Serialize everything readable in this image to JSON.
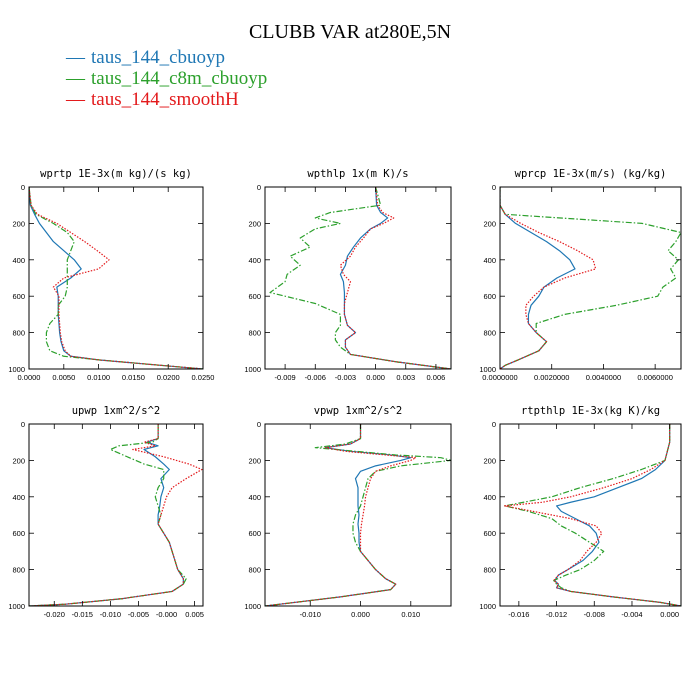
{
  "title": "CLUBB VAR at280E,5N",
  "legend": [
    {
      "label": "taus_144_cbuoyp",
      "color": "#1f77b4",
      "style": "solid"
    },
    {
      "label": "taus_144_c8m_cbuoyp",
      "color": "#2ca02c",
      "style": "dashdot"
    },
    {
      "label": "taus_144_smoothH",
      "color": "#e31a1c",
      "style": "dotted"
    }
  ],
  "chart_data": [
    {
      "type": "line",
      "title": "wprtp  1E-3x(m kg)/(s kg)",
      "xlim": [
        0.0,
        0.025
      ],
      "ylim": [
        1000,
        0
      ],
      "xticks": [
        0.0,
        0.005,
        0.01,
        0.015,
        0.02,
        0.025
      ],
      "xtick_labels": [
        "0.0000",
        "0.0050",
        "0.0100",
        "0.0150",
        "0.0200",
        "0.0250"
      ],
      "yticks": [
        0,
        200,
        400,
        600,
        800,
        1000
      ],
      "ytick_labels": [
        "0",
        "200",
        "400",
        "600",
        "800",
        "1000"
      ],
      "y": [
        0,
        100,
        150,
        200,
        250,
        300,
        350,
        400,
        450,
        500,
        550,
        600,
        650,
        700,
        750,
        800,
        850,
        900,
        930,
        950,
        970,
        990,
        1000
      ],
      "series": [
        {
          "name": "taus_144_cbuoyp",
          "values": [
            0.0,
            0.0002,
            0.0008,
            0.0015,
            0.0025,
            0.0035,
            0.005,
            0.0065,
            0.0075,
            0.006,
            0.004,
            0.0042,
            0.0042,
            0.0042,
            0.0043,
            0.0044,
            0.0046,
            0.005,
            0.006,
            0.01,
            0.016,
            0.022,
            0.025
          ]
        },
        {
          "name": "taus_144_c8m_cbuoyp",
          "values": [
            0.0,
            0.0003,
            0.001,
            0.0035,
            0.0055,
            0.0065,
            0.006,
            0.0055,
            0.0055,
            0.0055,
            0.0055,
            0.0052,
            0.0042,
            0.0042,
            0.003,
            0.0025,
            0.0025,
            0.003,
            0.005,
            0.01,
            0.016,
            0.022,
            0.025
          ]
        },
        {
          "name": "taus_144_smoothH",
          "values": [
            0.0,
            0.0003,
            0.0012,
            0.004,
            0.006,
            0.008,
            0.0098,
            0.0115,
            0.01,
            0.005,
            0.0035,
            0.0043,
            0.0043,
            0.0043,
            0.0044,
            0.0045,
            0.0047,
            0.0052,
            0.006,
            0.01,
            0.016,
            0.022,
            0.025
          ]
        }
      ]
    },
    {
      "type": "line",
      "title": "wpthlp  1x(m K)/s",
      "xlim": [
        -0.011,
        0.0075
      ],
      "ylim": [
        1000,
        0
      ],
      "xticks": [
        -0.009,
        -0.006,
        -0.003,
        0.0,
        0.003,
        0.006
      ],
      "xtick_labels": [
        "-0.009",
        "-0.006",
        "-0.003",
        "0.000",
        "0.003",
        "0.006"
      ],
      "yticks": [
        0,
        200,
        400,
        600,
        800,
        1000
      ],
      "ytick_labels": [
        "0",
        "200",
        "400",
        "600",
        "800",
        "1000"
      ],
      "y": [
        0,
        100,
        140,
        170,
        200,
        230,
        280,
        330,
        380,
        430,
        480,
        520,
        580,
        640,
        700,
        760,
        800,
        840,
        880,
        920,
        960,
        1000
      ],
      "series": [
        {
          "name": "taus_144_cbuoyp",
          "values": [
            0.0,
            0.0001,
            0.0005,
            0.0012,
            0.0005,
            -0.0005,
            -0.0015,
            -0.0022,
            -0.0028,
            -0.003,
            -0.0035,
            -0.0032,
            -0.0031,
            -0.0031,
            -0.0031,
            -0.0028,
            -0.002,
            -0.003,
            -0.003,
            -0.0025,
            0.002,
            0.0075
          ]
        },
        {
          "name": "taus_144_c8m_cbuoyp",
          "values": [
            0.0,
            0.0005,
            -0.0045,
            -0.006,
            -0.0035,
            -0.006,
            -0.0075,
            -0.0065,
            -0.0085,
            -0.0075,
            -0.0088,
            -0.009,
            -0.0105,
            -0.006,
            -0.0035,
            -0.0035,
            -0.004,
            -0.004,
            -0.0035,
            -0.0025,
            0.002,
            0.0075
          ]
        },
        {
          "name": "taus_144_smoothH",
          "values": [
            0.0,
            0.0002,
            0.0007,
            0.0018,
            0.0008,
            -0.0005,
            -0.0012,
            -0.002,
            -0.0025,
            -0.0035,
            -0.0032,
            -0.0025,
            -0.0028,
            -0.0031,
            -0.0031,
            -0.0028,
            -0.002,
            -0.003,
            -0.003,
            -0.0025,
            0.002,
            0.0075
          ]
        }
      ]
    },
    {
      "type": "line",
      "title": "wprcp  1E-3x(m/s) (kg/kg)",
      "xlim": [
        0.0,
        0.007
      ],
      "ylim": [
        1000,
        0
      ],
      "xticks": [
        0.0,
        0.002,
        0.004,
        0.006
      ],
      "xtick_labels": [
        "0.0000000",
        "0.0020000",
        "0.0040000",
        "0.0060000"
      ],
      "yticks": [
        0,
        200,
        400,
        600,
        800,
        1000
      ],
      "ytick_labels": [
        "0",
        "200",
        "400",
        "600",
        "800",
        "1000"
      ],
      "y": [
        0,
        100,
        150,
        200,
        250,
        300,
        350,
        400,
        450,
        500,
        550,
        600,
        650,
        700,
        750,
        800,
        850,
        900,
        950,
        980,
        1000
      ],
      "series": [
        {
          "name": "taus_144_cbuoyp",
          "values": [
            0.0,
            0.0,
            0.0002,
            0.0006,
            0.0012,
            0.0018,
            0.0023,
            0.0027,
            0.0029,
            0.0022,
            0.0017,
            0.0015,
            0.0012,
            0.0011,
            0.0011,
            0.0014,
            0.0018,
            0.0015,
            0.0007,
            0.0002,
            0.0
          ]
        },
        {
          "name": "taus_144_c8m_cbuoyp",
          "values": [
            0.0,
            0.0,
            0.0002,
            0.0055,
            0.007,
            0.0068,
            0.0065,
            0.0069,
            0.0066,
            0.0068,
            0.0063,
            0.0061,
            0.0045,
            0.0025,
            0.0014,
            0.0014,
            0.0018,
            0.0015,
            0.0007,
            0.0002,
            0.0
          ]
        },
        {
          "name": "taus_144_smoothH",
          "values": [
            0.0,
            0.0,
            0.0002,
            0.0008,
            0.0015,
            0.0023,
            0.003,
            0.0036,
            0.0037,
            0.0025,
            0.0017,
            0.0013,
            0.001,
            0.001,
            0.0011,
            0.0014,
            0.0018,
            0.0015,
            0.0007,
            0.0002,
            0.0
          ]
        }
      ]
    },
    {
      "type": "line",
      "title": "upwp  1xm^2/s^2",
      "xlim": [
        -0.0245,
        0.0065
      ],
      "ylim": [
        1000,
        0
      ],
      "xticks": [
        -0.02,
        -0.015,
        -0.01,
        -0.005,
        0.0,
        0.005
      ],
      "xtick_labels": [
        "-0.020",
        "-0.015",
        "-0.010",
        "-0.005",
        "-0.000",
        "0.005"
      ],
      "yticks": [
        0,
        200,
        400,
        600,
        800,
        1000
      ],
      "ytick_labels": [
        "0",
        "200",
        "400",
        "600",
        "800",
        "1000"
      ],
      "y": [
        0,
        80,
        100,
        120,
        140,
        180,
        220,
        250,
        300,
        350,
        400,
        450,
        500,
        550,
        600,
        650,
        700,
        750,
        800,
        850,
        880,
        920,
        960,
        990,
        1000
      ],
      "series": [
        {
          "name": "taus_144_cbuoyp",
          "values": [
            -0.0015,
            -0.0015,
            -0.0035,
            -0.0015,
            -0.004,
            -0.002,
            -0.0005,
            0.0005,
            -0.001,
            -0.0005,
            -0.001,
            -0.0012,
            -0.0015,
            -0.0015,
            -0.0005,
            0.0005,
            0.001,
            0.0015,
            0.002,
            0.003,
            0.003,
            0.001,
            -0.008,
            -0.018,
            -0.0245
          ]
        },
        {
          "name": "taus_144_c8m_cbuoyp",
          "values": [
            -0.0015,
            -0.0015,
            -0.0025,
            -0.0085,
            -0.01,
            -0.007,
            -0.004,
            -0.0005,
            -0.0005,
            -0.0015,
            -0.002,
            -0.0015,
            -0.001,
            -0.0015,
            -0.0005,
            0.0005,
            0.001,
            0.0015,
            0.002,
            0.0035,
            0.003,
            0.001,
            -0.008,
            -0.018,
            -0.0245
          ]
        },
        {
          "name": "taus_144_smoothH",
          "values": [
            -0.0015,
            -0.0015,
            -0.004,
            -0.002,
            -0.006,
            -0.0005,
            0.004,
            0.0063,
            0.0035,
            0.001,
            0.0,
            -0.0005,
            -0.001,
            -0.0015,
            -0.0005,
            0.0005,
            0.001,
            0.0015,
            0.002,
            0.003,
            0.003,
            0.001,
            -0.008,
            -0.018,
            -0.0245
          ]
        }
      ]
    },
    {
      "type": "line",
      "title": "vpwp  1xm^2/s^2",
      "xlim": [
        -0.019,
        0.018
      ],
      "ylim": [
        1000,
        0
      ],
      "xticks": [
        -0.01,
        0.0,
        0.01
      ],
      "xtick_labels": [
        "-0.010",
        "0.000",
        "0.010"
      ],
      "yticks": [
        0,
        200,
        400,
        600,
        800,
        1000
      ],
      "ytick_labels": [
        "0",
        "200",
        "400",
        "600",
        "800",
        "1000"
      ],
      "y": [
        0,
        80,
        110,
        130,
        150,
        170,
        185,
        200,
        230,
        260,
        300,
        350,
        400,
        450,
        500,
        550,
        600,
        650,
        700,
        750,
        800,
        850,
        880,
        910,
        950,
        990,
        1000
      ],
      "series": [
        {
          "name": "taus_144_cbuoyp",
          "values": [
            0.0,
            0.0,
            -0.002,
            -0.007,
            -0.002,
            0.006,
            0.01,
            0.008,
            0.003,
            0.0,
            -0.001,
            -0.0005,
            -0.0005,
            -0.0005,
            -0.0003,
            -0.0005,
            -0.0003,
            -0.0003,
            0.0,
            0.0015,
            0.003,
            0.005,
            0.007,
            0.006,
            -0.004,
            -0.016,
            -0.019
          ]
        },
        {
          "name": "taus_144_c8m_cbuoyp",
          "values": [
            0.0,
            0.0,
            -0.003,
            -0.009,
            -0.001,
            0.007,
            0.016,
            0.018,
            0.008,
            0.003,
            0.0015,
            0.001,
            0.0005,
            0.0,
            -0.001,
            -0.0015,
            -0.0015,
            -0.001,
            0.0,
            0.0015,
            0.003,
            0.005,
            0.007,
            0.006,
            -0.004,
            -0.016,
            -0.019
          ]
        },
        {
          "name": "taus_144_smoothH",
          "values": [
            0.0,
            0.0,
            -0.002,
            -0.007,
            -0.003,
            0.005,
            0.011,
            0.01,
            0.006,
            0.003,
            0.002,
            0.0015,
            0.001,
            0.0008,
            0.0005,
            0.0002,
            0.0,
            0.0,
            0.0,
            0.0015,
            0.003,
            0.005,
            0.007,
            0.006,
            -0.004,
            -0.016,
            -0.019
          ]
        }
      ]
    },
    {
      "type": "line",
      "title": "rtpthlp  1E-3x(kg K)/kg",
      "xlim": [
        -0.018,
        0.0012
      ],
      "ylim": [
        1000,
        0
      ],
      "xticks": [
        -0.016,
        -0.012,
        -0.008,
        -0.004,
        0.0
      ],
      "xtick_labels": [
        "-0.016",
        "-0.012",
        "-0.008",
        "-0.004",
        "0.000"
      ],
      "yticks": [
        0,
        200,
        400,
        600,
        800,
        1000
      ],
      "ytick_labels": [
        "0",
        "200",
        "400",
        "600",
        "800",
        "1000"
      ],
      "y": [
        0,
        100,
        200,
        250,
        300,
        350,
        400,
        430,
        450,
        480,
        520,
        560,
        600,
        650,
        700,
        750,
        800,
        830,
        860,
        880,
        900,
        920,
        950,
        980,
        1000
      ],
      "series": [
        {
          "name": "taus_144_cbuoyp",
          "values": [
            0.0,
            0.0,
            -0.0005,
            -0.0015,
            -0.003,
            -0.0055,
            -0.008,
            -0.0105,
            -0.012,
            -0.0115,
            -0.01,
            -0.0085,
            -0.0078,
            -0.0075,
            -0.0082,
            -0.0092,
            -0.0108,
            -0.0118,
            -0.0122,
            -0.0118,
            -0.012,
            -0.0105,
            -0.006,
            -0.001,
            0.0012
          ]
        },
        {
          "name": "taus_144_c8m_cbuoyp",
          "values": [
            0.0,
            0.0,
            -0.0005,
            -0.003,
            -0.006,
            -0.0095,
            -0.0125,
            -0.0155,
            -0.0175,
            -0.015,
            -0.0125,
            -0.0115,
            -0.01,
            -0.0085,
            -0.007,
            -0.008,
            -0.0095,
            -0.011,
            -0.0123,
            -0.012,
            -0.0115,
            -0.0105,
            -0.006,
            -0.001,
            0.0012
          ]
        },
        {
          "name": "taus_144_smoothH",
          "values": [
            0.0,
            0.0,
            -0.0005,
            -0.002,
            -0.004,
            -0.007,
            -0.0105,
            -0.0135,
            -0.0175,
            -0.0145,
            -0.0105,
            -0.0078,
            -0.0072,
            -0.0078,
            -0.0088,
            -0.0095,
            -0.0108,
            -0.0118,
            -0.0123,
            -0.0118,
            -0.012,
            -0.0105,
            -0.006,
            -0.001,
            0.0012
          ]
        }
      ]
    }
  ]
}
